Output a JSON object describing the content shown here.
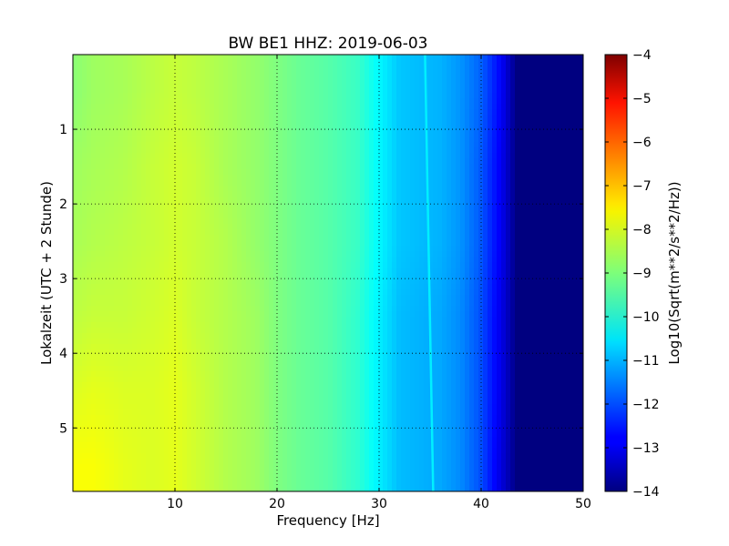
{
  "chart_data": {
    "type": "heatmap",
    "title": "BW BE1 HHZ: 2019-06-03",
    "xlabel": "Frequency [Hz]",
    "ylabel": "Lokalzeit (UTC + 2 Stunde)",
    "xlim": [
      0,
      50
    ],
    "ylim": [
      5.85,
      0.0
    ],
    "x_ticks": [
      10,
      20,
      30,
      40,
      50
    ],
    "x_tick_labels": [
      "10",
      "20",
      "30",
      "40",
      "50"
    ],
    "y_ticks": [
      1,
      2,
      3,
      4,
      5
    ],
    "y_tick_labels": [
      "1",
      "2",
      "3",
      "4",
      "5"
    ],
    "grid": true,
    "colormap": "jet",
    "colorbar": {
      "label": "Log10(Sqrt(m**2/s**2/Hz))",
      "range": [
        -14,
        -4
      ],
      "ticks": [
        -4,
        -5,
        -6,
        -7,
        -8,
        -9,
        -10,
        -11,
        -12,
        -13,
        -14
      ],
      "tick_labels": [
        "−4",
        "−5",
        "−6",
        "−7",
        "−8",
        "−9",
        "−10",
        "−11",
        "−12",
        "−13",
        "−14"
      ]
    },
    "x": [
      0,
      2,
      5,
      8,
      10,
      12,
      15,
      18,
      20,
      22,
      25,
      28,
      30,
      32,
      34,
      36,
      38,
      40,
      42,
      43.5,
      45,
      50
    ],
    "y": [
      0.5,
      1.5,
      2.5,
      3.5,
      4.5,
      5.5
    ],
    "values": [
      [
        -8.9,
        -8.7,
        -8.6,
        -8.4,
        -8.3,
        -8.4,
        -8.6,
        -8.8,
        -9.0,
        -9.2,
        -9.4,
        -9.7,
        -10.3,
        -10.8,
        -10.9,
        -11.0,
        -11.3,
        -11.8,
        -12.8,
        -14.0,
        -14.0,
        -14.0
      ],
      [
        -8.7,
        -8.6,
        -8.5,
        -8.3,
        -8.2,
        -8.3,
        -8.6,
        -8.8,
        -9.0,
        -9.2,
        -9.4,
        -9.7,
        -10.3,
        -10.8,
        -10.9,
        -11.0,
        -11.3,
        -11.9,
        -12.9,
        -14.0,
        -14.0,
        -14.0
      ],
      [
        -8.6,
        -8.5,
        -8.4,
        -8.3,
        -8.2,
        -8.3,
        -8.5,
        -8.8,
        -9.0,
        -9.2,
        -9.4,
        -9.7,
        -10.3,
        -10.8,
        -10.9,
        -11.0,
        -11.3,
        -11.9,
        -12.9,
        -14.0,
        -14.0,
        -14.0
      ],
      [
        -8.4,
        -8.3,
        -8.3,
        -8.2,
        -8.1,
        -8.3,
        -8.5,
        -8.7,
        -9.0,
        -9.2,
        -9.4,
        -9.8,
        -10.4,
        -10.9,
        -11.0,
        -11.1,
        -11.4,
        -12.0,
        -13.0,
        -14.0,
        -14.0,
        -14.0
      ],
      [
        -8.1,
        -8.0,
        -8.1,
        -8.1,
        -8.0,
        -8.2,
        -8.5,
        -8.7,
        -9.0,
        -9.2,
        -9.4,
        -9.8,
        -10.4,
        -10.9,
        -11.0,
        -11.1,
        -11.4,
        -12.0,
        -13.0,
        -14.0,
        -14.0,
        -14.0
      ],
      [
        -7.8,
        -7.8,
        -8.0,
        -8.1,
        -8.0,
        -8.2,
        -8.5,
        -8.7,
        -9.0,
        -9.2,
        -9.4,
        -9.8,
        -10.4,
        -10.9,
        -11.0,
        -11.1,
        -11.4,
        -12.0,
        -13.1,
        -14.0,
        -14.0,
        -14.0
      ]
    ],
    "annotations": [
      {
        "description": "narrow spectral line",
        "x_start": 34.5,
        "x_end": 35.3,
        "y_start": 0.0,
        "y_end": 5.85,
        "value": -10.4
      }
    ]
  }
}
